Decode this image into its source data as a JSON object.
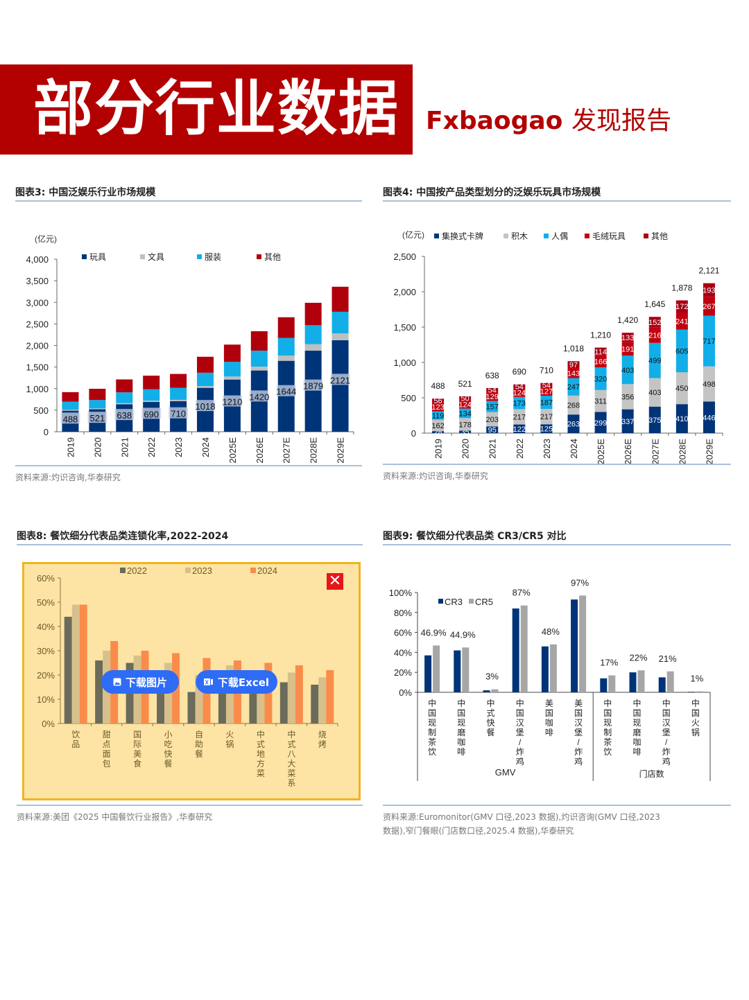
{
  "header": {
    "title": "部分行业数据",
    "brand_en": "Fxbaogao",
    "brand_cn": "发现报告",
    "banner_color": "#b30000"
  },
  "panels": {
    "p3": {
      "title": "图表3:  中国泛娱乐行业市场规模",
      "unit": "(亿元)",
      "source": "资料来源:灼识咨询,华泰研究"
    },
    "p4": {
      "title": "图表4:  中国按产品类型划分的泛娱乐玩具市场规模",
      "unit": "(亿元)",
      "source": "资料来源:灼识咨询,华泰研究"
    },
    "p8": {
      "title": "图表8:  餐饮细分代表品类连锁化率,2022-2024",
      "source": "资料来源:美团《2025 中国餐饮行业报告》,华泰研究",
      "download_image_label": "下载图片",
      "download_excel_label": "下载Excel",
      "close_label": "✕"
    },
    "p9": {
      "title": "图表9:  餐饮细分代表品类 CR3/CR5 对比",
      "source_line1": "资料来源:Euromonitor(GMV 口径,2023 数据),灼识咨询(GMV 口径,2023",
      "source_line2": "数据),窄门餐眼(门店数口径,2025.4 数据),华泰研究",
      "group_labels": [
        "GMV",
        "门店数"
      ]
    }
  },
  "chart_data": [
    {
      "id": "chart3",
      "type": "bar",
      "stacked": true,
      "title": "中国泛娱乐行业市场规模",
      "xlabel": "",
      "ylabel": "(亿元)",
      "ylim": [
        0,
        4000
      ],
      "yticks": [
        "0",
        "500",
        "1,000",
        "1,500",
        "2,000",
        "2,500",
        "3,000",
        "3,500",
        "4,000"
      ],
      "legend_position": "top",
      "categories": [
        "2019",
        "2020",
        "2021",
        "2022",
        "2023",
        "2024",
        "2025E",
        "2026E",
        "2027E",
        "2028E",
        "2029E"
      ],
      "series": [
        {
          "name": "玩具",
          "color": "#003478",
          "values": [
            488,
            521,
            638,
            690,
            710,
            1018,
            1210,
            1420,
            1644,
            1879,
            2121
          ]
        },
        {
          "name": "文具",
          "color": "#bfbfbf",
          "values": [
            20,
            20,
            25,
            30,
            30,
            40,
            70,
            90,
            120,
            150,
            160
          ]
        },
        {
          "name": "服装",
          "color": "#12aee8",
          "values": [
            190,
            195,
            250,
            265,
            280,
            310,
            340,
            370,
            410,
            440,
            500
          ]
        },
        {
          "name": "其他",
          "color": "#b0000b",
          "values": [
            220,
            260,
            300,
            315,
            320,
            370,
            400,
            450,
            480,
            520,
            580
          ]
        }
      ],
      "data_labels": [
        "488",
        "521",
        "638",
        "690",
        "710",
        "1018",
        "1210",
        "1420",
        "1644",
        "1879",
        "2121"
      ]
    },
    {
      "id": "chart4",
      "type": "bar",
      "stacked": true,
      "title": "中国按产品类型划分的泛娱乐玩具市场规模",
      "ylabel": "(亿元)",
      "ylim": [
        0,
        2500
      ],
      "yticks": [
        "0",
        "500",
        "1,000",
        "1,500",
        "2,000",
        "2,500"
      ],
      "legend_position": "top",
      "categories": [
        "2019",
        "2020",
        "2021",
        "2022",
        "2023",
        "2024",
        "2025E",
        "2026E",
        "2027E",
        "2028E",
        "2029E"
      ],
      "series": [
        {
          "name": "集换式卡牌",
          "color": "#003478",
          "label_color": "#ffffff",
          "values": [
            28,
            35,
            95,
            122,
            125,
            263,
            299,
            337,
            375,
            410,
            446
          ]
        },
        {
          "name": "积木",
          "color": "#c4c4c4",
          "label_color": "#111111",
          "values": [
            162,
            178,
            203,
            217,
            217,
            268,
            311,
            356,
            403,
            450,
            498
          ]
        },
        {
          "name": "人偶",
          "color": "#12aee8",
          "label_color": "#111111",
          "values": [
            119,
            134,
            157,
            173,
            187,
            247,
            320,
            403,
            499,
            605,
            717
          ]
        },
        {
          "name": "毛绒玩具",
          "color": "#c0000f",
          "label_color": "#ffffff",
          "values": [
            123,
            124,
            129,
            124,
            127,
            143,
            166,
            191,
            216,
            241,
            267
          ]
        },
        {
          "name": "其他",
          "color": "#a80014",
          "label_color": "#ffffff",
          "values": [
            56,
            50,
            54,
            54,
            54,
            97,
            114,
            133,
            152,
            172,
            193
          ]
        }
      ],
      "totals": [
        "488",
        "521",
        "638",
        "690",
        "710",
        "1,018",
        "1,210",
        "1,420",
        "1,645",
        "1,878",
        "2,121"
      ]
    },
    {
      "id": "chart8",
      "type": "bar",
      "stacked": false,
      "title": "餐饮细分代表品类连锁化率,2022-2024",
      "ylim": [
        0,
        60
      ],
      "yticks": [
        "0%",
        "10%",
        "20%",
        "30%",
        "40%",
        "50%",
        "60%"
      ],
      "legend_position": "top",
      "categories": [
        "饮品",
        "甜点面包",
        "国际美食",
        "小吃快餐",
        "自助餐",
        "火锅",
        "中式地方菜",
        "中式八大菜系",
        "烧烤"
      ],
      "series": [
        {
          "name": "2022",
          "color": "#6b6b5b",
          "values": [
            44,
            26,
            25,
            20,
            13,
            20,
            19,
            17,
            16
          ]
        },
        {
          "name": "2023",
          "color": "#d8c08c",
          "values": [
            49,
            30,
            28,
            25,
            20,
            24,
            22,
            21,
            19
          ]
        },
        {
          "name": "2024",
          "color": "#fa8c4b",
          "values": [
            49,
            34,
            30,
            29,
            27,
            26,
            25,
            24,
            22
          ]
        }
      ]
    },
    {
      "id": "chart9",
      "type": "bar",
      "stacked": false,
      "title": "餐饮细分代表品类 CR3/CR5 对比",
      "ylim": [
        0,
        100
      ],
      "yticks": [
        "0%",
        "20%",
        "40%",
        "60%",
        "80%",
        "100%"
      ],
      "legend_position": "top-left",
      "categories": [
        "中国现制茶饮",
        "中国现磨咖啡",
        "中式快餐",
        "中国汉堡/炸鸡",
        "美国咖啡",
        "美国汉堡/炸鸡",
        "中国现制茶饮",
        "中国现磨咖啡",
        "中国汉堡/炸鸡",
        "中国火锅"
      ],
      "groups": [
        {
          "name": "GMV",
          "count": 6
        },
        {
          "name": "门店数",
          "count": 4
        }
      ],
      "series": [
        {
          "name": "CR3",
          "color": "#003478",
          "values": [
            37,
            42,
            2,
            84,
            46,
            93,
            14,
            20,
            15,
            0.5
          ]
        },
        {
          "name": "CR5",
          "color": "#a6a6a6",
          "values": [
            46.9,
            44.9,
            3,
            87,
            48,
            97,
            17,
            22,
            21,
            1
          ]
        }
      ],
      "data_labels": [
        "46.9%",
        "44.9%",
        "3%",
        "87%",
        "48%",
        "97%",
        "17%",
        "22%",
        "21%",
        "1%"
      ]
    }
  ]
}
